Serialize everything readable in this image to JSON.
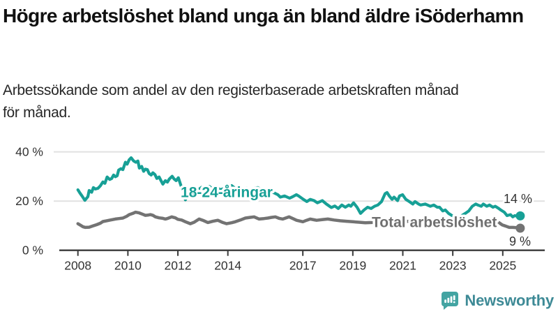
{
  "header": {
    "title": "Högre arbetslöshet bland unga än bland äldre i Söderhamn",
    "title_lines": [
      "Högre arbetslöshet bland unga än bland äldre i",
      "Söderhamn"
    ],
    "subtitle": "Arbetssökande som andel av den registerbaserade arbetskraften månad för månad.",
    "subtitle_lines": [
      "Arbetssökande som andel av den registerbaserade arbetskraften månad",
      "för månad."
    ]
  },
  "chart_data": {
    "type": "line",
    "title": "Högre arbetslöshet bland unga än bland äldre i Söderhamn",
    "subtitle": "Arbetssökande som andel av den registerbaserade arbetskraften månad för månad.",
    "unit": "%",
    "grid": "horizontal-only",
    "x_axis": {
      "range": [
        2007.25,
        2026.7
      ],
      "ticks": [
        {
          "value": 2008,
          "label": "2008"
        },
        {
          "value": 2010,
          "label": "2010"
        },
        {
          "value": 2012,
          "label": "2012"
        },
        {
          "value": 2014,
          "label": "2014"
        },
        {
          "value": 2017,
          "label": "2017"
        },
        {
          "value": 2019,
          "label": "2019"
        },
        {
          "value": 2021,
          "label": "2021"
        },
        {
          "value": 2023,
          "label": "2023"
        },
        {
          "value": 2025,
          "label": "2025"
        }
      ]
    },
    "y_axis": {
      "range": [
        0,
        42
      ],
      "ticks": [
        {
          "value": 40,
          "label": "40 %"
        },
        {
          "value": 20,
          "label": "20 %"
        },
        {
          "value": 0,
          "label": "0 %"
        }
      ]
    },
    "colors": {
      "youth": "#17a096",
      "total": "#737373",
      "grid": "#e1e1e1",
      "axis": "#3a3a3a",
      "text": "#333333"
    },
    "series": [
      {
        "name": "18-24-åringar",
        "color": "#17a096",
        "end_label": "14 %",
        "end_value": 14,
        "points": [
          [
            2008.0,
            24.6
          ],
          [
            2008.08,
            23.3
          ],
          [
            2008.17,
            22.0
          ],
          [
            2008.28,
            20.3
          ],
          [
            2008.4,
            21.8
          ],
          [
            2008.45,
            24.3
          ],
          [
            2008.55,
            23.6
          ],
          [
            2008.62,
            25.5
          ],
          [
            2008.7,
            24.9
          ],
          [
            2008.8,
            25.2
          ],
          [
            2008.9,
            26.2
          ],
          [
            2009.0,
            27.8
          ],
          [
            2009.08,
            27.2
          ],
          [
            2009.17,
            29.8
          ],
          [
            2009.27,
            28.8
          ],
          [
            2009.35,
            29.2
          ],
          [
            2009.43,
            30.6
          ],
          [
            2009.5,
            29.9
          ],
          [
            2009.57,
            30.3
          ],
          [
            2009.63,
            32.6
          ],
          [
            2009.72,
            33.2
          ],
          [
            2009.8,
            32.8
          ],
          [
            2009.9,
            35.8
          ],
          [
            2009.97,
            35.0
          ],
          [
            2010.05,
            36.8
          ],
          [
            2010.13,
            37.6
          ],
          [
            2010.23,
            36.3
          ],
          [
            2010.32,
            35.8
          ],
          [
            2010.4,
            36.3
          ],
          [
            2010.46,
            33.4
          ],
          [
            2010.55,
            34.1
          ],
          [
            2010.63,
            32.1
          ],
          [
            2010.7,
            33.0
          ],
          [
            2010.78,
            32.8
          ],
          [
            2010.85,
            31.2
          ],
          [
            2010.93,
            30.6
          ],
          [
            2011.0,
            31.5
          ],
          [
            2011.08,
            30.8
          ],
          [
            2011.16,
            29.2
          ],
          [
            2011.25,
            29.8
          ],
          [
            2011.32,
            28.4
          ],
          [
            2011.4,
            26.9
          ],
          [
            2011.5,
            28.3
          ],
          [
            2011.58,
            27.7
          ],
          [
            2011.66,
            29.0
          ],
          [
            2011.77,
            30.1
          ],
          [
            2011.85,
            29.0
          ],
          [
            2011.93,
            28.3
          ],
          [
            2012.02,
            29.5
          ],
          [
            2012.1,
            27.0
          ],
          [
            2012.2,
            24.0
          ],
          [
            2012.3,
            20.5
          ],
          [
            2012.4,
            22.5
          ],
          [
            2012.5,
            24.0
          ],
          [
            2012.65,
            23.2
          ],
          [
            2012.8,
            24.5
          ],
          [
            2012.95,
            25.6
          ],
          [
            2013.1,
            25.0
          ],
          [
            2013.25,
            26.0
          ],
          [
            2013.4,
            24.9
          ],
          [
            2013.55,
            25.6
          ],
          [
            2013.7,
            24.6
          ],
          [
            2013.85,
            25.2
          ],
          [
            2014.0,
            25.9
          ],
          [
            2014.15,
            26.3
          ],
          [
            2014.3,
            25.1
          ],
          [
            2014.45,
            25.7
          ],
          [
            2014.6,
            24.6
          ],
          [
            2014.75,
            25.3
          ],
          [
            2014.9,
            24.4
          ],
          [
            2015.05,
            25.1
          ],
          [
            2015.2,
            25.5
          ],
          [
            2015.35,
            24.3
          ],
          [
            2015.5,
            24.9
          ],
          [
            2015.65,
            23.9
          ],
          [
            2015.82,
            23.5
          ],
          [
            2016.0,
            22.6
          ],
          [
            2016.1,
            21.6
          ],
          [
            2016.27,
            22.1
          ],
          [
            2016.47,
            21.2
          ],
          [
            2016.6,
            21.8
          ],
          [
            2016.74,
            22.6
          ],
          [
            2016.83,
            22.1
          ],
          [
            2017.02,
            20.7
          ],
          [
            2017.16,
            19.8
          ],
          [
            2017.3,
            20.7
          ],
          [
            2017.45,
            20.2
          ],
          [
            2017.58,
            19.3
          ],
          [
            2017.78,
            20.2
          ],
          [
            2017.94,
            18.8
          ],
          [
            2018.14,
            17.4
          ],
          [
            2018.28,
            18.0
          ],
          [
            2018.42,
            17.0
          ],
          [
            2018.56,
            18.4
          ],
          [
            2018.7,
            17.5
          ],
          [
            2018.84,
            18.4
          ],
          [
            2018.92,
            17.9
          ],
          [
            2019.03,
            19.3
          ],
          [
            2019.17,
            17.5
          ],
          [
            2019.31,
            15.0
          ],
          [
            2019.45,
            16.4
          ],
          [
            2019.59,
            17.5
          ],
          [
            2019.73,
            17.0
          ],
          [
            2019.87,
            17.9
          ],
          [
            2020.0,
            18.4
          ],
          [
            2020.15,
            19.8
          ],
          [
            2020.29,
            23.0
          ],
          [
            2020.37,
            23.5
          ],
          [
            2020.46,
            22.1
          ],
          [
            2020.57,
            20.7
          ],
          [
            2020.65,
            21.6
          ],
          [
            2020.79,
            20.2
          ],
          [
            2020.87,
            22.1
          ],
          [
            2020.99,
            22.6
          ],
          [
            2021.12,
            20.7
          ],
          [
            2021.26,
            19.8
          ],
          [
            2021.4,
            18.8
          ],
          [
            2021.49,
            19.8
          ],
          [
            2021.63,
            18.8
          ],
          [
            2021.71,
            18.4
          ],
          [
            2021.9,
            18.8
          ],
          [
            2022.1,
            17.9
          ],
          [
            2022.24,
            18.4
          ],
          [
            2022.38,
            17.5
          ],
          [
            2022.47,
            17.5
          ],
          [
            2022.6,
            16.0
          ],
          [
            2022.7,
            16.4
          ],
          [
            2022.83,
            15.0
          ],
          [
            2022.97,
            14.1
          ],
          [
            2023.1,
            13.6
          ],
          [
            2023.2,
            13.0
          ],
          [
            2023.36,
            14.1
          ],
          [
            2023.5,
            15.0
          ],
          [
            2023.64,
            16.0
          ],
          [
            2023.78,
            17.9
          ],
          [
            2023.92,
            18.8
          ],
          [
            2024.0,
            18.4
          ],
          [
            2024.14,
            17.9
          ],
          [
            2024.22,
            18.8
          ],
          [
            2024.36,
            17.9
          ],
          [
            2024.47,
            18.4
          ],
          [
            2024.61,
            17.5
          ],
          [
            2024.7,
            17.9
          ],
          [
            2024.84,
            17.0
          ],
          [
            2024.92,
            16.4
          ],
          [
            2025.06,
            15.5
          ],
          [
            2025.17,
            14.1
          ],
          [
            2025.31,
            14.5
          ],
          [
            2025.4,
            13.6
          ],
          [
            2025.48,
            14.1
          ],
          [
            2025.6,
            13.8
          ],
          [
            2025.7,
            14.0
          ]
        ]
      },
      {
        "name": "Total arbetslöshet",
        "color": "#737373",
        "end_label": "9 %",
        "end_value": 9,
        "points": [
          [
            2008.0,
            10.8
          ],
          [
            2008.1,
            10.2
          ],
          [
            2008.2,
            9.6
          ],
          [
            2008.3,
            9.3
          ],
          [
            2008.45,
            9.4
          ],
          [
            2008.6,
            9.9
          ],
          [
            2008.75,
            10.4
          ],
          [
            2008.9,
            11.0
          ],
          [
            2009.0,
            11.7
          ],
          [
            2009.15,
            12.0
          ],
          [
            2009.3,
            12.3
          ],
          [
            2009.5,
            12.7
          ],
          [
            2009.65,
            12.9
          ],
          [
            2009.8,
            13.1
          ],
          [
            2009.95,
            13.8
          ],
          [
            2010.05,
            14.5
          ],
          [
            2010.2,
            15.0
          ],
          [
            2010.3,
            15.5
          ],
          [
            2010.45,
            15.2
          ],
          [
            2010.6,
            14.6
          ],
          [
            2010.7,
            14.2
          ],
          [
            2010.8,
            14.3
          ],
          [
            2010.9,
            14.5
          ],
          [
            2011.0,
            14.2
          ],
          [
            2011.1,
            13.6
          ],
          [
            2011.25,
            13.2
          ],
          [
            2011.4,
            13.0
          ],
          [
            2011.5,
            12.7
          ],
          [
            2011.6,
            13.0
          ],
          [
            2011.75,
            13.6
          ],
          [
            2011.9,
            13.2
          ],
          [
            2012.0,
            12.6
          ],
          [
            2012.15,
            12.3
          ],
          [
            2012.3,
            11.6
          ],
          [
            2012.5,
            10.8
          ],
          [
            2012.65,
            11.4
          ],
          [
            2012.85,
            12.7
          ],
          [
            2013.0,
            12.2
          ],
          [
            2013.2,
            11.3
          ],
          [
            2013.4,
            11.8
          ],
          [
            2013.6,
            12.2
          ],
          [
            2013.8,
            11.3
          ],
          [
            2013.95,
            10.8
          ],
          [
            2014.15,
            11.2
          ],
          [
            2014.3,
            11.6
          ],
          [
            2014.5,
            12.3
          ],
          [
            2014.7,
            13.1
          ],
          [
            2014.9,
            13.4
          ],
          [
            2015.05,
            13.6
          ],
          [
            2015.25,
            12.7
          ],
          [
            2015.45,
            12.9
          ],
          [
            2015.6,
            13.1
          ],
          [
            2015.75,
            13.4
          ],
          [
            2015.9,
            13.6
          ],
          [
            2016.05,
            13.0
          ],
          [
            2016.2,
            12.7
          ],
          [
            2016.45,
            13.6
          ],
          [
            2016.6,
            12.9
          ],
          [
            2016.75,
            12.2
          ],
          [
            2017.0,
            11.6
          ],
          [
            2017.15,
            12.2
          ],
          [
            2017.3,
            12.7
          ],
          [
            2017.45,
            12.4
          ],
          [
            2017.55,
            12.2
          ],
          [
            2017.8,
            12.5
          ],
          [
            2018.0,
            12.7
          ],
          [
            2018.25,
            12.3
          ],
          [
            2018.5,
            12.0
          ],
          [
            2018.75,
            11.8
          ],
          [
            2019.0,
            11.6
          ],
          [
            2019.25,
            11.4
          ],
          [
            2019.5,
            11.2
          ],
          [
            2019.75,
            11.3
          ],
          [
            2020.0,
            11.5
          ],
          [
            2020.25,
            11.9
          ],
          [
            2020.5,
            12.3
          ],
          [
            2020.75,
            12.2
          ],
          [
            2021.0,
            12.0
          ],
          [
            2021.25,
            11.7
          ],
          [
            2021.5,
            11.4
          ],
          [
            2021.75,
            11.2
          ],
          [
            2022.0,
            10.9
          ],
          [
            2022.25,
            10.6
          ],
          [
            2022.5,
            10.3
          ],
          [
            2022.75,
            9.9
          ],
          [
            2023.0,
            9.3
          ],
          [
            2023.15,
            9.3
          ],
          [
            2023.3,
            9.3
          ],
          [
            2023.45,
            9.6
          ],
          [
            2023.6,
            9.9
          ],
          [
            2023.86,
            10.3
          ],
          [
            2024.06,
            10.8
          ],
          [
            2024.2,
            10.3
          ],
          [
            2024.4,
            10.3
          ],
          [
            2024.56,
            9.9
          ],
          [
            2024.7,
            10.8
          ],
          [
            2024.84,
            11.3
          ],
          [
            2024.98,
            10.3
          ],
          [
            2025.1,
            9.9
          ],
          [
            2025.26,
            9.3
          ],
          [
            2025.4,
            9.3
          ],
          [
            2025.55,
            9.2
          ],
          [
            2025.7,
            9.0
          ]
        ]
      }
    ],
    "legend_position": "inline-labels"
  },
  "footer": {
    "brand": "Newsworthy"
  }
}
